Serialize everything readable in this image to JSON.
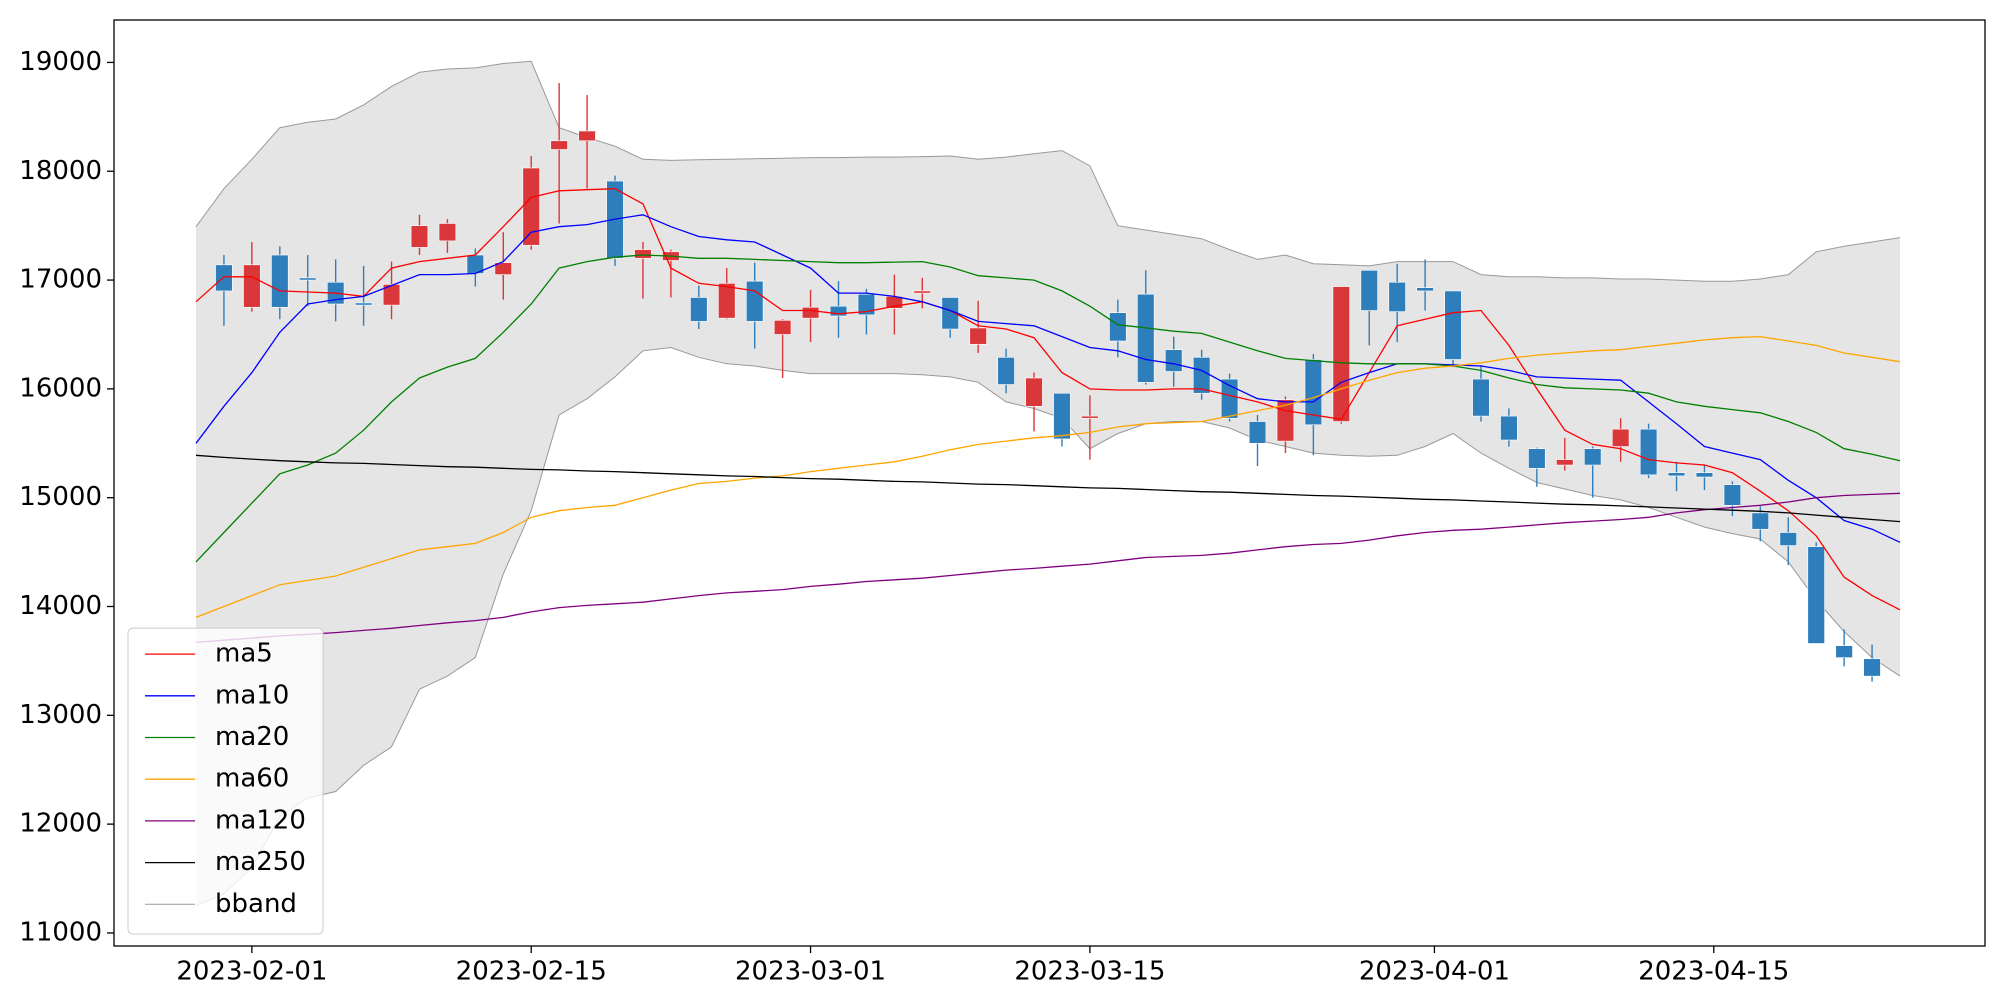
{
  "chart_data": {
    "type": "candlestick",
    "x": [
      "2023-01-30",
      "2023-01-31",
      "2023-02-01",
      "2023-02-02",
      "2023-02-03",
      "2023-02-06",
      "2023-02-07",
      "2023-02-08",
      "2023-02-09",
      "2023-02-10",
      "2023-02-13",
      "2023-02-14",
      "2023-02-15",
      "2023-02-16",
      "2023-02-17",
      "2023-02-20",
      "2023-02-21",
      "2023-02-22",
      "2023-02-23",
      "2023-02-24",
      "2023-02-27",
      "2023-02-28",
      "2023-03-01",
      "2023-03-02",
      "2023-03-03",
      "2023-03-06",
      "2023-03-07",
      "2023-03-08",
      "2023-03-09",
      "2023-03-10",
      "2023-03-13",
      "2023-03-14",
      "2023-03-15",
      "2023-03-16",
      "2023-03-17",
      "2023-03-20",
      "2023-03-21",
      "2023-03-22",
      "2023-03-23",
      "2023-03-24",
      "2023-03-27",
      "2023-03-28",
      "2023-03-29",
      "2023-03-30",
      "2023-03-31",
      "2023-04-03",
      "2023-04-04",
      "2023-04-05",
      "2023-04-06",
      "2023-04-07",
      "2023-04-10",
      "2023-04-11",
      "2023-04-12",
      "2023-04-13",
      "2023-04-14",
      "2023-04-17",
      "2023-04-18",
      "2023-04-19",
      "2023-04-20",
      "2023-04-21",
      "2023-04-24",
      "2023-04-25"
    ],
    "open": [
      null,
      17140,
      16750,
      17230,
      17020,
      16980,
      16790,
      16770,
      17300,
      17360,
      17230,
      17050,
      17320,
      18200,
      18280,
      17910,
      17200,
      17180,
      16840,
      16650,
      16990,
      16500,
      16650,
      16760,
      16870,
      16740,
      16880,
      16840,
      16410,
      16290,
      15840,
      15960,
      15730,
      16700,
      16870,
      16360,
      16290,
      16090,
      15700,
      15520,
      16270,
      15700,
      17090,
      16980,
      16930,
      16900,
      16090,
      15750,
      15450,
      15300,
      15450,
      15470,
      15630,
      15230,
      15230,
      15120,
      14860,
      14680,
      14550,
      13640,
      13520,
      null
    ],
    "high": [
      null,
      17230,
      17350,
      17310,
      17230,
      17190,
      17130,
      17170,
      17600,
      17560,
      17290,
      17440,
      18140,
      18810,
      18700,
      17960,
      17350,
      17280,
      16950,
      17110,
      17160,
      16640,
      16910,
      16990,
      16920,
      17050,
      17020,
      16840,
      16810,
      16370,
      16150,
      15960,
      15940,
      16820,
      17090,
      16480,
      16360,
      16140,
      15760,
      15930,
      16320,
      16940,
      17090,
      17150,
      17190,
      16900,
      16220,
      15820,
      15460,
      15550,
      15470,
      15730,
      15680,
      15330,
      15300,
      15150,
      14920,
      14820,
      14590,
      13790,
      13650,
      null
    ],
    "low": [
      null,
      16580,
      16710,
      16640,
      16760,
      16620,
      16580,
      16640,
      17230,
      17250,
      16940,
      16820,
      17280,
      17520,
      17840,
      17130,
      16830,
      16840,
      16550,
      16640,
      16370,
      16100,
      16430,
      16470,
      16500,
      16500,
      16740,
      16470,
      16330,
      15960,
      15610,
      15470,
      15350,
      16290,
      16040,
      16020,
      15900,
      15700,
      15290,
      15410,
      15390,
      15680,
      16400,
      16430,
      16720,
      16200,
      15700,
      15470,
      15100,
      15250,
      15000,
      15330,
      15180,
      15060,
      15070,
      14830,
      14600,
      14380,
      13660,
      13450,
      13310,
      null
    ],
    "close": [
      null,
      16900,
      17140,
      16750,
      17000,
      16780,
      16770,
      16960,
      17500,
      17520,
      17060,
      17160,
      18030,
      18280,
      18370,
      17200,
      17280,
      17260,
      16620,
      16970,
      16620,
      16630,
      16750,
      16670,
      16680,
      16850,
      16900,
      16550,
      16560,
      16040,
      16100,
      15540,
      15750,
      16440,
      16060,
      16160,
      15960,
      15730,
      15500,
      15900,
      15670,
      16940,
      16720,
      16710,
      16900,
      16270,
      15750,
      15530,
      15270,
      15350,
      15300,
      15630,
      15210,
      15200,
      15190,
      14930,
      14710,
      14560,
      13660,
      13530,
      13360,
      null
    ],
    "up_color": "#d9373a",
    "down_color": "#2e7ebc",
    "series": [
      {
        "name": "ma5",
        "color": "#ff0000",
        "values": [
          16800,
          17030,
          17030,
          16900,
          16890,
          16880,
          16850,
          17110,
          17170,
          17200,
          17230,
          17490,
          17760,
          17820,
          17830,
          17840,
          17700,
          17110,
          16970,
          16940,
          16900,
          16720,
          16720,
          16690,
          16710,
          16760,
          16800,
          16720,
          16580,
          16550,
          16470,
          16150,
          16000,
          15990,
          15990,
          16000,
          16000,
          15940,
          15880,
          15800,
          15760,
          15720,
          16150,
          16580,
          16640,
          16700,
          16720,
          16400,
          16000,
          15620,
          15490,
          15450,
          15350,
          15320,
          15300,
          15230,
          15060,
          14880,
          14650,
          14270,
          14100,
          13970
        ]
      },
      {
        "name": "ma10",
        "color": "#0000ff",
        "values": [
          15500,
          15840,
          16150,
          16520,
          16780,
          16820,
          16850,
          16950,
          17050,
          17050,
          17060,
          17170,
          17440,
          17490,
          17510,
          17560,
          17600,
          17490,
          17400,
          17370,
          17350,
          17230,
          17110,
          16880,
          16880,
          16850,
          16800,
          16720,
          16620,
          16600,
          16580,
          16480,
          16380,
          16350,
          16270,
          16230,
          16170,
          16030,
          15910,
          15880,
          15880,
          16060,
          16150,
          16230,
          16230,
          16220,
          16210,
          16170,
          16110,
          16100,
          16090,
          16080,
          15880,
          15680,
          15470,
          15410,
          15350,
          15160,
          15000,
          14790,
          14710,
          14590
        ]
      },
      {
        "name": "ma20",
        "color": "#008000",
        "values": [
          14410,
          14680,
          14950,
          15220,
          15300,
          15410,
          15620,
          15880,
          16100,
          16200,
          16280,
          16520,
          16780,
          17110,
          17170,
          17210,
          17230,
          17220,
          17200,
          17200,
          17190,
          17180,
          17170,
          17160,
          17160,
          17165,
          17170,
          17120,
          17040,
          17020,
          17000,
          16900,
          16760,
          16590,
          16560,
          16530,
          16510,
          16430,
          16350,
          16280,
          16260,
          16240,
          16230,
          16230,
          16230,
          16210,
          16170,
          16100,
          16040,
          16010,
          16000,
          15990,
          15960,
          15880,
          15840,
          15810,
          15780,
          15700,
          15600,
          15450,
          15400,
          15340
        ]
      },
      {
        "name": "ma60",
        "color": "#ffa500",
        "values": [
          13900,
          14000,
          14100,
          14200,
          14240,
          14280,
          14360,
          14440,
          14520,
          14550,
          14580,
          14680,
          14820,
          14880,
          14910,
          14930,
          15000,
          15070,
          15130,
          15150,
          15180,
          15200,
          15240,
          15270,
          15300,
          15330,
          15380,
          15440,
          15490,
          15520,
          15550,
          15570,
          15600,
          15650,
          15680,
          15690,
          15700,
          15750,
          15800,
          15850,
          15920,
          16000,
          16080,
          16150,
          16190,
          16210,
          16240,
          16280,
          16310,
          16330,
          16350,
          16360,
          16390,
          16420,
          16450,
          16470,
          16480,
          16440,
          16400,
          16330,
          16290,
          16250
        ]
      },
      {
        "name": "ma120",
        "color": "#800080",
        "values": [
          13670,
          13690,
          13710,
          13730,
          13745,
          13760,
          13780,
          13800,
          13825,
          13850,
          13870,
          13900,
          13950,
          13990,
          14010,
          14025,
          14040,
          14070,
          14100,
          14125,
          14140,
          14155,
          14185,
          14205,
          14230,
          14245,
          14260,
          14285,
          14310,
          14335,
          14350,
          14370,
          14390,
          14420,
          14450,
          14460,
          14470,
          14490,
          14520,
          14550,
          14570,
          14580,
          14610,
          14650,
          14680,
          14700,
          14710,
          14730,
          14750,
          14770,
          14785,
          14800,
          14820,
          14860,
          14890,
          14910,
          14930,
          14960,
          15000,
          15020,
          15030,
          15040
        ]
      },
      {
        "name": "ma250",
        "color": "#000000",
        "values": [
          15390,
          15370,
          15355,
          15340,
          15330,
          15320,
          15315,
          15305,
          15295,
          15285,
          15280,
          15270,
          15260,
          15255,
          15245,
          15240,
          15230,
          15220,
          15210,
          15200,
          15195,
          15185,
          15175,
          15170,
          15160,
          15150,
          15145,
          15135,
          15125,
          15120,
          15110,
          15100,
          15090,
          15085,
          15075,
          15065,
          15055,
          15050,
          15040,
          15030,
          15020,
          15015,
          15005,
          14995,
          14985,
          14980,
          14970,
          14960,
          14950,
          14940,
          14935,
          14925,
          14915,
          14905,
          14895,
          14885,
          14875,
          14860,
          14840,
          14820,
          14800,
          14780
        ]
      },
      {
        "name": "bband",
        "color": "#999999",
        "fill": "#e5e5e5",
        "upper": [
          17490,
          17840,
          18110,
          18400,
          18450,
          18480,
          18610,
          18780,
          18910,
          18940,
          18950,
          18990,
          19010,
          18400,
          18310,
          18230,
          18110,
          18100,
          18105,
          18110,
          18115,
          18120,
          18125,
          18125,
          18130,
          18130,
          18135,
          18140,
          18110,
          18130,
          18160,
          18190,
          18050,
          17500,
          17460,
          17420,
          17380,
          17280,
          17190,
          17230,
          17150,
          17140,
          17130,
          17170,
          17170,
          17170,
          17050,
          17030,
          17030,
          17020,
          17020,
          17010,
          17010,
          17000,
          16990,
          16990,
          17010,
          17050,
          17260,
          17310,
          17350,
          17390
        ],
        "lower": [
          11250,
          11360,
          11600,
          12070,
          12240,
          12300,
          12540,
          12710,
          13240,
          13360,
          13530,
          14300,
          14880,
          15760,
          15910,
          16110,
          16350,
          16380,
          16290,
          16230,
          16210,
          16170,
          16140,
          16140,
          16140,
          16140,
          16130,
          16110,
          16060,
          15880,
          15820,
          15730,
          15450,
          15590,
          15680,
          15700,
          15700,
          15640,
          15530,
          15470,
          15410,
          15390,
          15380,
          15390,
          15470,
          15590,
          15410,
          15270,
          15140,
          15080,
          15020,
          14980,
          14910,
          14820,
          14730,
          14670,
          14620,
          14410,
          14060,
          13770,
          13530,
          13360
        ]
      }
    ],
    "ylim": [
      10880,
      19390
    ],
    "yticks": [
      11000,
      12000,
      13000,
      14000,
      15000,
      16000,
      17000,
      18000,
      19000
    ],
    "xticks": [
      "2023-02-01",
      "2023-02-15",
      "2023-03-01",
      "2023-03-15",
      "2023-04-01",
      "2023-04-15"
    ],
    "legend": "lower left"
  }
}
